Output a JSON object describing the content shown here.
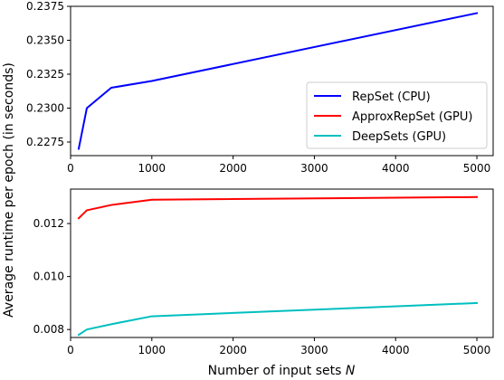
{
  "figure": {
    "ylabel": "Average runtime per epoch (in seconds)",
    "xlabel_text": "Number of input sets ",
    "xlabel_var": "N"
  },
  "chart_data": [
    {
      "type": "line",
      "xlim": [
        0,
        5200
      ],
      "ylim": [
        0.2265,
        0.2375
      ],
      "xticks": [
        0,
        1000,
        2000,
        3000,
        4000,
        5000
      ],
      "xtick_labels": [
        "0",
        "1000",
        "2000",
        "3000",
        "4000",
        "5000"
      ],
      "yticks": [
        0.2275,
        0.23,
        0.2325,
        0.235,
        0.2375
      ],
      "ytick_labels": [
        "0.2275",
        "0.2300",
        "0.2325",
        "0.2350",
        "0.2375"
      ],
      "legend_position": "lower-right",
      "series": [
        {
          "name": "RepSet (CPU)",
          "color": "#0000ff",
          "x": [
            100,
            200,
            500,
            1000,
            5000
          ],
          "y": [
            0.227,
            0.23,
            0.2315,
            0.232,
            0.237
          ]
        }
      ],
      "legend_entries": [
        {
          "name": "RepSet (CPU)",
          "color": "#0000ff"
        },
        {
          "name": "ApproxRepSet (GPU)",
          "color": "#ff0000"
        },
        {
          "name": "DeepSets (GPU)",
          "color": "#00bfbf"
        }
      ]
    },
    {
      "type": "line",
      "xlim": [
        0,
        5200
      ],
      "ylim": [
        0.0077,
        0.0133
      ],
      "xticks": [
        0,
        1000,
        2000,
        3000,
        4000,
        5000
      ],
      "xtick_labels": [
        "0",
        "1000",
        "2000",
        "3000",
        "4000",
        "5000"
      ],
      "yticks": [
        0.008,
        0.01,
        0.012
      ],
      "ytick_labels": [
        "0.008",
        "0.010",
        "0.012"
      ],
      "series": [
        {
          "name": "ApproxRepSet (GPU)",
          "color": "#ff0000",
          "x": [
            100,
            200,
            500,
            1000,
            5000
          ],
          "y": [
            0.0122,
            0.0125,
            0.0127,
            0.0129,
            0.013
          ]
        },
        {
          "name": "DeepSets (GPU)",
          "color": "#00bfbf",
          "x": [
            100,
            200,
            500,
            1000,
            5000
          ],
          "y": [
            0.0078,
            0.008,
            0.0082,
            0.0085,
            0.009
          ]
        }
      ]
    }
  ]
}
